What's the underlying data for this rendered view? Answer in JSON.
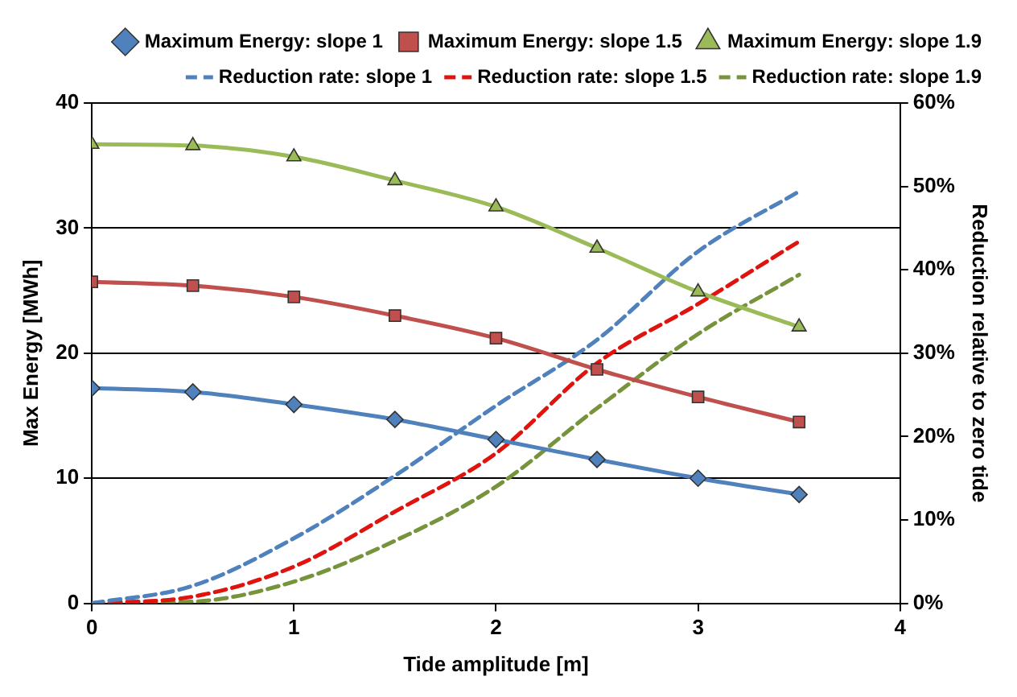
{
  "chart_data": {
    "type": "line",
    "xlabel": "Tide amplitude [m]",
    "ylabel": "Max Energy [MWh]",
    "y2label": "Reduction relative to zero tide",
    "x": [
      0,
      0.5,
      1,
      1.5,
      2,
      2.5,
      3,
      3.5
    ],
    "xlim": [
      0,
      4
    ],
    "xticks": [
      0,
      1,
      2,
      3,
      4
    ],
    "ylim": [
      0,
      40
    ],
    "yticks": [
      0,
      10,
      20,
      30,
      40
    ],
    "y2lim": [
      0,
      60
    ],
    "y2ticks": [
      {
        "value": 0,
        "label": "0%"
      },
      {
        "value": 10,
        "label": "10%"
      },
      {
        "value": 20,
        "label": "20%"
      },
      {
        "value": 30,
        "label": "30%"
      },
      {
        "value": 40,
        "label": "40%"
      },
      {
        "value": 50,
        "label": "50%"
      },
      {
        "value": 60,
        "label": "60%"
      }
    ],
    "grid": "y",
    "legend": "top right",
    "series": [
      {
        "name": "Maximum Energy: slope 1",
        "color": "#4f81bd",
        "marker": "diamond",
        "line_style": "solid",
        "values": [
          17.2,
          16.9,
          15.9,
          14.7,
          13.1,
          11.5,
          10.0,
          8.7
        ]
      },
      {
        "name": "Maximum Energy: slope 1.5",
        "color": "#c0504d",
        "marker": "square",
        "line_style": "solid",
        "values": [
          25.7,
          25.4,
          24.5,
          23.0,
          21.2,
          18.7,
          16.5,
          14.5
        ]
      },
      {
        "name": "Maximum Energy: slope 1.9",
        "color": "#9bbb59",
        "marker": "triangle",
        "line_style": "solid",
        "values": [
          36.7,
          36.6,
          35.7,
          33.8,
          31.7,
          28.4,
          24.9,
          22.1
        ]
      },
      {
        "name": "Reduction rate: slope 1",
        "color": "#4f81bd",
        "marker": "none",
        "line_style": "dashed",
        "axis": "y2",
        "values": [
          0,
          2.1,
          7.8,
          15.3,
          23.7,
          31.6,
          42.2,
          49.4
        ]
      },
      {
        "name": "Reduction rate: slope 1.5",
        "color": "#e0140f",
        "marker": "none",
        "line_style": "dashed",
        "axis": "y2",
        "values": [
          0,
          0.8,
          4.4,
          11,
          18,
          28.8,
          35.9,
          43.4
        ]
      },
      {
        "name": "Reduction rate: slope 1.9",
        "color": "#77933c",
        "marker": "none",
        "line_style": "dashed",
        "axis": "y2",
        "values": [
          0,
          0.2,
          2.6,
          7.5,
          14,
          23.4,
          32.3,
          39.4
        ]
      }
    ]
  }
}
